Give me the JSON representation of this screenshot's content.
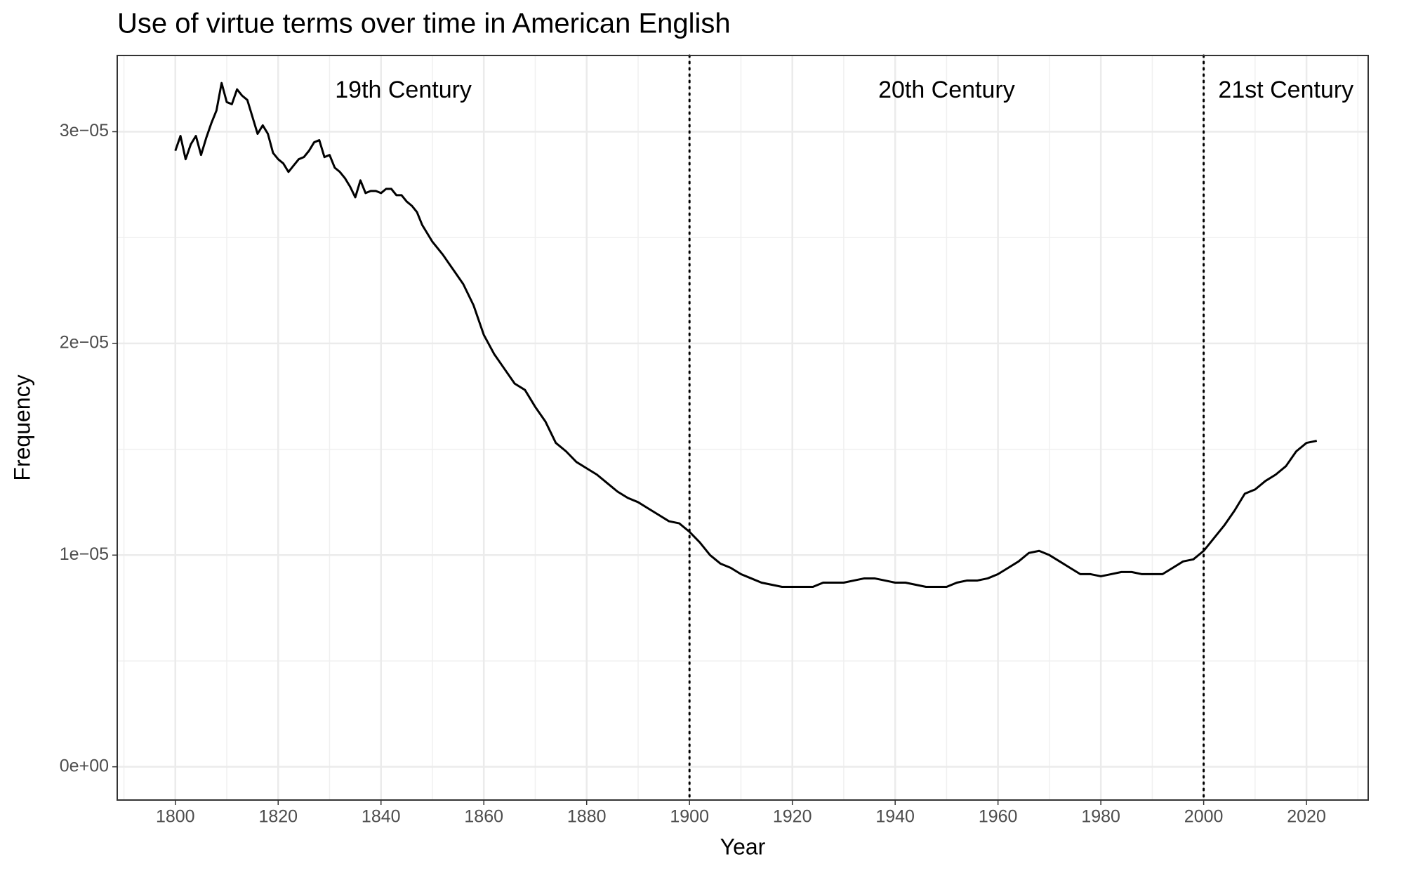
{
  "chart_data": {
    "type": "line",
    "title": "Use of virtue terms over time in American English",
    "xlabel": "Year",
    "ylabel": "Frequency",
    "color": "#000000",
    "grid": true,
    "x": [
      1800,
      1801,
      1802,
      1803,
      1804,
      1805,
      1806,
      1807,
      1808,
      1809,
      1810,
      1811,
      1812,
      1813,
      1814,
      1815,
      1816,
      1817,
      1818,
      1819,
      1820,
      1821,
      1822,
      1823,
      1824,
      1825,
      1826,
      1827,
      1828,
      1829,
      1830,
      1831,
      1832,
      1833,
      1834,
      1835,
      1836,
      1837,
      1838,
      1839,
      1840,
      1841,
      1842,
      1843,
      1844,
      1845,
      1846,
      1847,
      1848,
      1850,
      1852,
      1854,
      1856,
      1858,
      1860,
      1862,
      1864,
      1866,
      1868,
      1870,
      1872,
      1874,
      1876,
      1878,
      1880,
      1882,
      1884,
      1886,
      1888,
      1890,
      1892,
      1894,
      1896,
      1898,
      1900,
      1902,
      1904,
      1906,
      1908,
      1910,
      1912,
      1914,
      1916,
      1918,
      1920,
      1922,
      1924,
      1926,
      1928,
      1930,
      1932,
      1934,
      1936,
      1938,
      1940,
      1942,
      1944,
      1946,
      1948,
      1950,
      1952,
      1954,
      1956,
      1958,
      1960,
      1962,
      1964,
      1966,
      1968,
      1970,
      1972,
      1974,
      1976,
      1978,
      1980,
      1982,
      1984,
      1986,
      1988,
      1990,
      1992,
      1994,
      1996,
      1998,
      2000,
      2002,
      2004,
      2006,
      2008,
      2010,
      2012,
      2014,
      2016,
      2018,
      2020,
      2022
    ],
    "values": [
      2.91e-05,
      2.98e-05,
      2.87e-05,
      2.94e-05,
      2.98e-05,
      2.89e-05,
      2.97e-05,
      3.04e-05,
      3.1e-05,
      3.23e-05,
      3.14e-05,
      3.13e-05,
      3.2e-05,
      3.17e-05,
      3.15e-05,
      3.07e-05,
      2.99e-05,
      3.03e-05,
      2.99e-05,
      2.9e-05,
      2.87e-05,
      2.85e-05,
      2.81e-05,
      2.84e-05,
      2.87e-05,
      2.88e-05,
      2.91e-05,
      2.95e-05,
      2.96e-05,
      2.88e-05,
      2.89e-05,
      2.83e-05,
      2.81e-05,
      2.78e-05,
      2.74e-05,
      2.69e-05,
      2.77e-05,
      2.71e-05,
      2.72e-05,
      2.72e-05,
      2.71e-05,
      2.73e-05,
      2.73e-05,
      2.7e-05,
      2.7e-05,
      2.67e-05,
      2.65e-05,
      2.62e-05,
      2.56e-05,
      2.48e-05,
      2.42e-05,
      2.35e-05,
      2.28e-05,
      2.18e-05,
      2.04e-05,
      1.95e-05,
      1.88e-05,
      1.81e-05,
      1.78e-05,
      1.7e-05,
      1.63e-05,
      1.53e-05,
      1.49e-05,
      1.44e-05,
      1.41e-05,
      1.38e-05,
      1.34e-05,
      1.3e-05,
      1.27e-05,
      1.25e-05,
      1.22e-05,
      1.19e-05,
      1.16e-05,
      1.15e-05,
      1.11e-05,
      1.06e-05,
      1e-05,
      9.6e-06,
      9.4e-06,
      9.1e-06,
      8.9e-06,
      8.7e-06,
      8.6e-06,
      8.5e-06,
      8.5e-06,
      8.5e-06,
      8.5e-06,
      8.7e-06,
      8.7e-06,
      8.7e-06,
      8.8e-06,
      8.9e-06,
      8.9e-06,
      8.8e-06,
      8.7e-06,
      8.7e-06,
      8.6e-06,
      8.5e-06,
      8.5e-06,
      8.5e-06,
      8.7e-06,
      8.8e-06,
      8.8e-06,
      8.9e-06,
      9.1e-06,
      9.4e-06,
      9.7e-06,
      1.01e-05,
      1.02e-05,
      1e-05,
      9.7e-06,
      9.4e-06,
      9.1e-06,
      9.1e-06,
      9e-06,
      9.1e-06,
      9.2e-06,
      9.2e-06,
      9.1e-06,
      9.1e-06,
      9.1e-06,
      9.4e-06,
      9.7e-06,
      9.8e-06,
      1.02e-05,
      1.08e-05,
      1.14e-05,
      1.21e-05,
      1.29e-05,
      1.31e-05,
      1.35e-05,
      1.38e-05,
      1.42e-05,
      1.49e-05,
      1.53e-05,
      1.54e-05
    ],
    "xlim": [
      1788.7,
      2032
    ],
    "ylim": [
      -1.57e-06,
      3.36e-05
    ],
    "xticks": [
      1800,
      1820,
      1840,
      1860,
      1880,
      1900,
      1920,
      1940,
      1960,
      1980,
      2000,
      2020
    ],
    "yticks": [
      {
        "value": 0,
        "label": "0e+00"
      },
      {
        "value": 1e-05,
        "label": "1e−05"
      },
      {
        "value": 2e-05,
        "label": "2e−05"
      },
      {
        "value": 3e-05,
        "label": "3e−05"
      }
    ],
    "vlines": [
      1900,
      2000
    ],
    "annotations": [
      "19th Century",
      "20th Century",
      "21st Century"
    ]
  }
}
